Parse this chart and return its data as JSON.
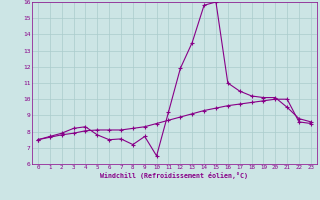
{
  "xlabel": "Windchill (Refroidissement éolien,°C)",
  "background_color": "#cce5e5",
  "grid_color": "#aacccc",
  "line_color": "#880088",
  "xlim": [
    -0.5,
    23.5
  ],
  "ylim": [
    6,
    16
  ],
  "xticks": [
    0,
    1,
    2,
    3,
    4,
    5,
    6,
    7,
    8,
    9,
    10,
    11,
    12,
    13,
    14,
    15,
    16,
    17,
    18,
    19,
    20,
    21,
    22,
    23
  ],
  "yticks": [
    6,
    7,
    8,
    9,
    10,
    11,
    12,
    13,
    14,
    15,
    16
  ],
  "series1_x": [
    0,
    1,
    2,
    3,
    4,
    5,
    6,
    7,
    8,
    9,
    10,
    11,
    12,
    13,
    14,
    15,
    16,
    17,
    18,
    19,
    20,
    21,
    22,
    23
  ],
  "series1_y": [
    7.5,
    7.7,
    7.9,
    8.2,
    8.3,
    7.8,
    7.5,
    7.55,
    7.2,
    7.7,
    6.5,
    9.2,
    11.9,
    13.5,
    15.8,
    16.0,
    11.0,
    10.5,
    10.2,
    10.1,
    10.1,
    9.5,
    8.8,
    8.6
  ],
  "series2_x": [
    0,
    1,
    2,
    3,
    4,
    5,
    6,
    7,
    8,
    9,
    10,
    11,
    12,
    13,
    14,
    15,
    16,
    17,
    18,
    19,
    20,
    21,
    22,
    23
  ],
  "series2_y": [
    7.5,
    7.65,
    7.8,
    7.9,
    8.05,
    8.1,
    8.1,
    8.1,
    8.2,
    8.3,
    8.5,
    8.7,
    8.9,
    9.1,
    9.3,
    9.45,
    9.6,
    9.7,
    9.8,
    9.9,
    10.0,
    10.0,
    8.6,
    8.5
  ]
}
